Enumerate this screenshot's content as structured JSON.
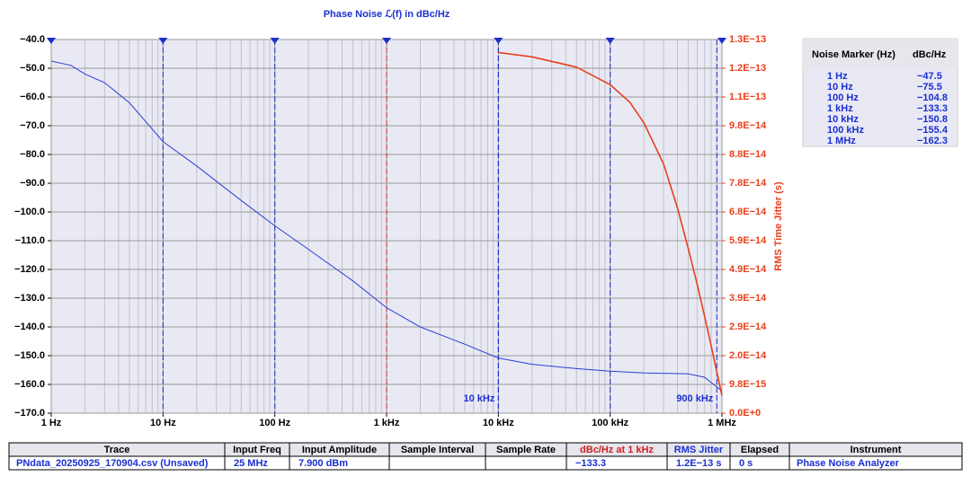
{
  "chart_data": {
    "type": "line",
    "title": "Phase Noise ℒ(f) in dBc/Hz",
    "y2_label": "RMS Time Jitter (s)",
    "xscale": "log",
    "grid": true,
    "xlim": [
      1,
      1000000
    ],
    "xticks": [
      {
        "value": 1,
        "label": "1 Hz"
      },
      {
        "value": 10,
        "label": "10 Hz"
      },
      {
        "value": 100,
        "label": "100 Hz"
      },
      {
        "value": 1000,
        "label": "1 kHz"
      },
      {
        "value": 10000,
        "label": "10 kHz"
      },
      {
        "value": 100000,
        "label": "100 kHz"
      },
      {
        "value": 1000000,
        "label": "1 MHz"
      }
    ],
    "ylim": [
      -170,
      -40
    ],
    "yticks": [
      {
        "value": -40,
        "label": "−40.0"
      },
      {
        "value": -50,
        "label": "−50.0"
      },
      {
        "value": -60,
        "label": "−60.0"
      },
      {
        "value": -70,
        "label": "−70.0"
      },
      {
        "value": -80,
        "label": "−80.0"
      },
      {
        "value": -90,
        "label": "−90.0"
      },
      {
        "value": -100,
        "label": "−100.0"
      },
      {
        "value": -110,
        "label": "−110.0"
      },
      {
        "value": -120,
        "label": "−120.0"
      },
      {
        "value": -130,
        "label": "−130.0"
      },
      {
        "value": -140,
        "label": "−140.0"
      },
      {
        "value": -150,
        "label": "−150.0"
      },
      {
        "value": -160,
        "label": "−160.0"
      },
      {
        "value": -170,
        "label": "−170.0"
      }
    ],
    "y2lim": [
      0,
      1.274e-13
    ],
    "y2ticks": [
      {
        "value": 1.274e-13,
        "label": "1.3E−13"
      },
      {
        "value": 1.176e-13,
        "label": "1.2E−13"
      },
      {
        "value": 1.078e-13,
        "label": "1.1E−13"
      },
      {
        "value": 9.8e-14,
        "label": "9.8E−14"
      },
      {
        "value": 8.82e-14,
        "label": "8.8E−14"
      },
      {
        "value": 7.84e-14,
        "label": "7.8E−14"
      },
      {
        "value": 6.86e-14,
        "label": "6.8E−14"
      },
      {
        "value": 5.88e-14,
        "label": "5.9E−14"
      },
      {
        "value": 4.9e-14,
        "label": "4.9E−14"
      },
      {
        "value": 3.92e-14,
        "label": "3.9E−14"
      },
      {
        "value": 2.94e-14,
        "label": "2.9E−14"
      },
      {
        "value": 1.96e-14,
        "label": "2.0E−14"
      },
      {
        "value": 9.8e-15,
        "label": "9.8E−15"
      },
      {
        "value": 0,
        "label": "0.0E+0"
      }
    ],
    "series": [
      {
        "color": "#2a3fd6",
        "x": [
          1,
          1.5,
          2,
          3,
          5,
          10,
          20,
          50,
          100,
          200,
          500,
          1000,
          2000,
          5000,
          10000,
          20000,
          50000,
          100000,
          200000,
          500000,
          700000,
          1000000
        ],
        "values": [
          -47.5,
          -49,
          -52,
          -55,
          -62,
          -75.5,
          -84,
          -96,
          -104.8,
          -113,
          -124,
          -133.3,
          -140,
          -146,
          -150.8,
          -153,
          -154.5,
          -155.4,
          -156,
          -156.3,
          -157.5,
          -162.3
        ]
      },
      {
        "color": "#e8401c",
        "axis": "y2",
        "x": [
          10000,
          20000,
          50000,
          100000,
          150000,
          200000,
          300000,
          400000,
          500000,
          600000,
          700000,
          800000,
          900000,
          1000000
        ],
        "values": [
          1.23e-13,
          1.215e-13,
          1.18e-13,
          1.12e-13,
          1.06e-13,
          9.9e-14,
          8.5e-14,
          7e-14,
          5.6e-14,
          4.4e-14,
          3.3e-14,
          2.3e-14,
          1.4e-14,
          6e-15
        ]
      }
    ],
    "integration_limits": [
      {
        "x": 10000,
        "label": "10 kHz"
      },
      {
        "x": 900000,
        "label": "900 kHz"
      }
    ],
    "marker_color": "#1a2fd0",
    "highlight_color": "#d02020",
    "highlight_index": 3
  },
  "noise_markers": {
    "header": [
      "Noise Marker (Hz)",
      "dBc/Hz"
    ],
    "rows": [
      {
        "label": "1 Hz",
        "freq": 1,
        "value": -47.5,
        "value_label": "−47.5"
      },
      {
        "label": "10 Hz",
        "freq": 10,
        "value": -75.5,
        "value_label": "−75.5"
      },
      {
        "label": "100 Hz",
        "freq": 100,
        "value": -104.8,
        "value_label": "−104.8"
      },
      {
        "label": "1 kHz",
        "freq": 1000,
        "value": -133.3,
        "value_label": "−133.3"
      },
      {
        "label": "10 kHz",
        "freq": 10000,
        "value": -150.8,
        "value_label": "−150.8"
      },
      {
        "label": "100 kHz",
        "freq": 100000,
        "value": -155.4,
        "value_label": "−155.4"
      },
      {
        "label": "1 MHz",
        "freq": 1000000,
        "value": -162.3,
        "value_label": "−162.3"
      }
    ]
  },
  "summary_table": {
    "header": [
      "Trace",
      "Input Freq",
      "Input Amplitude",
      "Sample Interval",
      "Sample Rate",
      "dBc/Hz at 1 kHz",
      "RMS Jitter",
      "Elapsed",
      "Instrument"
    ],
    "row": [
      "PNdata_20250925_170904.csv (Unsaved)",
      "25 MHz",
      "7.900 dBm",
      null,
      null,
      "−133.3",
      "1.2E−13 s",
      "0 s",
      "Phase Noise Analyzer"
    ]
  }
}
